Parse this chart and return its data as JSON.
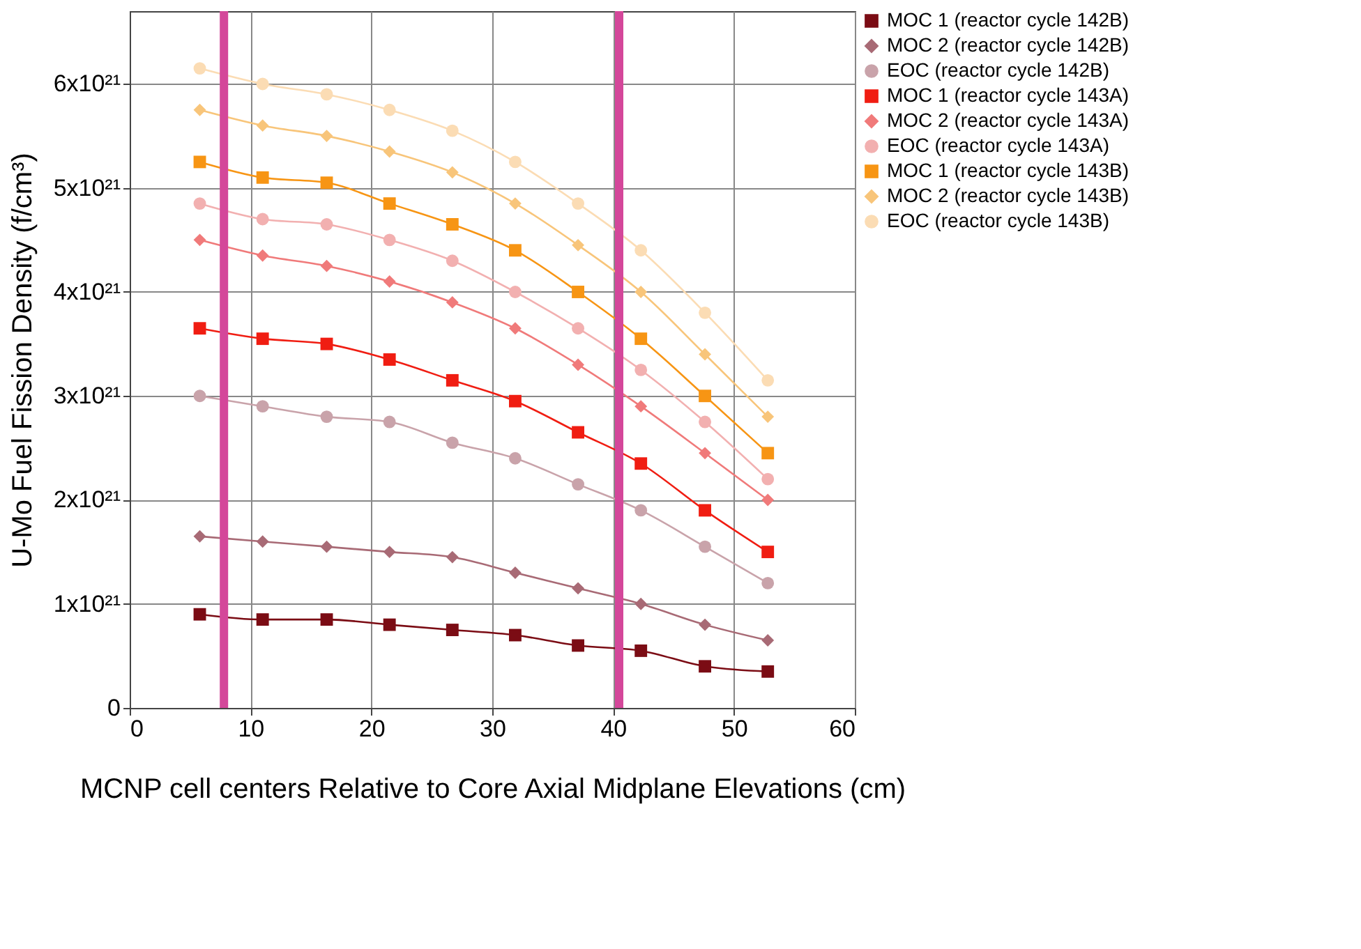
{
  "chart_data": {
    "type": "line",
    "xlabel": "MCNP cell centers Relative to Core Axial Midplane Elevations (cm)",
    "ylabel": "U-Mo Fuel Fission Density (f/cm³)",
    "x": [
      5.8,
      11.0,
      16.3,
      21.5,
      26.7,
      31.9,
      37.1,
      42.3,
      47.6,
      52.8
    ],
    "xlim": [
      0,
      60
    ],
    "xticks": [
      0,
      10,
      20,
      30,
      40,
      50,
      60
    ],
    "ylim": [
      0,
      6.7e+21
    ],
    "yticks": [
      0,
      {
        "value": 1e+21,
        "label": "1x10²¹"
      },
      {
        "value": 2e+21,
        "label": "2x10²¹"
      },
      {
        "value": 3e+21,
        "label": "3x10²¹"
      },
      {
        "value": 4e+21,
        "label": "4x10²¹"
      },
      {
        "value": 5e+21,
        "label": "5x10²¹"
      },
      {
        "value": 6e+21,
        "label": "6x10²¹"
      }
    ],
    "grid": true,
    "legend": "top right",
    "line_style": "solid",
    "series": [
      {
        "name": "MOC 1 (reactor cycle 142B)",
        "color": "#7b0c14",
        "marker": "square",
        "values": [
          9e+20,
          8.5e+20,
          8.5e+20,
          8e+20,
          7.5e+20,
          7e+20,
          6e+20,
          5.5e+20,
          4e+20,
          3.5e+20
        ]
      },
      {
        "name": "MOC 2 (reactor cycle 142B)",
        "color": "#a86a75",
        "marker": "diamond",
        "values": [
          1.65e+21,
          1.6e+21,
          1.55e+21,
          1.5e+21,
          1.45e+21,
          1.3e+21,
          1.15e+21,
          1e+21,
          8e+20,
          6.5e+20
        ]
      },
      {
        "name": "EOC  (reactor cycle 142B)",
        "color": "#c9a3aa",
        "marker": "circle",
        "values": [
          3e+21,
          2.9e+21,
          2.8e+21,
          2.75e+21,
          2.55e+21,
          2.4e+21,
          2.15e+21,
          1.9e+21,
          1.55e+21,
          1.2e+21
        ]
      },
      {
        "name": "MOC 1 (reactor cycle 143A)",
        "color": "#f01d12",
        "marker": "square",
        "values": [
          3.65e+21,
          3.55e+21,
          3.5e+21,
          3.35e+21,
          3.15e+21,
          2.95e+21,
          2.65e+21,
          2.35e+21,
          1.9e+21,
          1.5e+21
        ]
      },
      {
        "name": "MOC 2 (reactor cycle 143A)",
        "color": "#f07a7a",
        "marker": "diamond",
        "values": [
          4.5e+21,
          4.35e+21,
          4.25e+21,
          4.1e+21,
          3.9e+21,
          3.65e+21,
          3.3e+21,
          2.9e+21,
          2.45e+21,
          2e+21
        ]
      },
      {
        "name": "EOC (reactor cycle 143A)",
        "color": "#f2b0b0",
        "marker": "circle",
        "values": [
          4.85e+21,
          4.7e+21,
          4.65e+21,
          4.5e+21,
          4.3e+21,
          4e+21,
          3.65e+21,
          3.25e+21,
          2.75e+21,
          2.2e+21
        ]
      },
      {
        "name": "MOC 1 (reactor cycle 143B)",
        "color": "#f79514",
        "marker": "square",
        "values": [
          5.25e+21,
          5.1e+21,
          5.05e+21,
          4.85e+21,
          4.65e+21,
          4.4e+21,
          4e+21,
          3.55e+21,
          3e+21,
          2.45e+21
        ]
      },
      {
        "name": "MOC 2 (reactor cycle 143B)",
        "color": "#f8c57a",
        "marker": "diamond",
        "values": [
          5.75e+21,
          5.6e+21,
          5.5e+21,
          5.35e+21,
          5.15e+21,
          4.85e+21,
          4.45e+21,
          4e+21,
          3.4e+21,
          2.8e+21
        ]
      },
      {
        "name": "EOC  (reactor cycle 143B)",
        "color": "#fbdcb4",
        "marker": "circle",
        "values": [
          6.15e+21,
          6e+21,
          5.9e+21,
          5.75e+21,
          5.55e+21,
          5.25e+21,
          4.85e+21,
          4.4e+21,
          3.8e+21,
          3.15e+21
        ]
      }
    ],
    "ref_lines": [
      {
        "axis": "x",
        "value": 7.8,
        "color": "#d4479a"
      },
      {
        "axis": "x",
        "value": 40.5,
        "color": "#d4479a"
      }
    ]
  }
}
